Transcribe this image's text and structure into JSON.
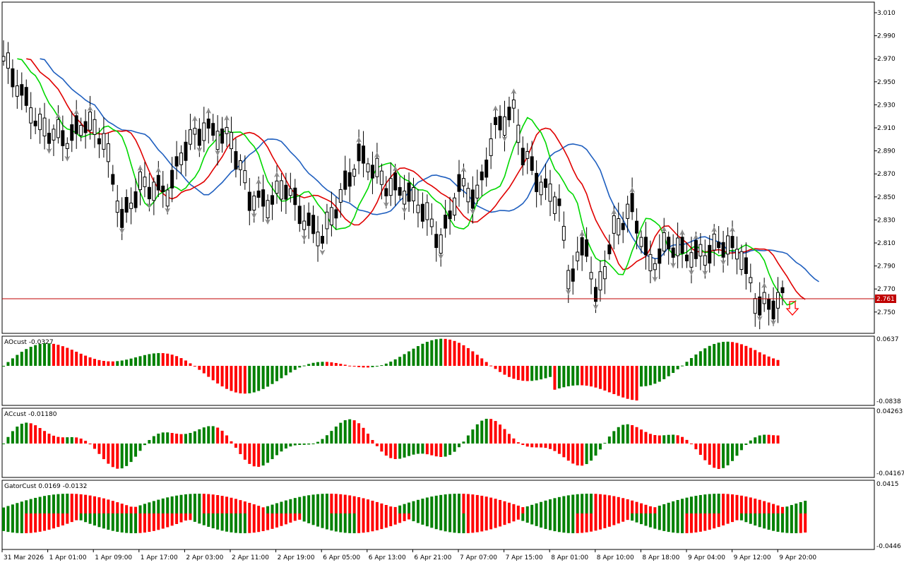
{
  "colors": {
    "background": "#ffffff",
    "frame": "#000000",
    "bull_candle": "#ffffff",
    "bear_candle": "#000000",
    "jaw": "#1f5fbf",
    "teeth": "#e00000",
    "lips": "#00d800",
    "histogram_up": "#008000",
    "histogram_down": "#ff0000",
    "fractal": "#8c8c8c",
    "price_line": "#c00000",
    "signal_arrow": "#ff0000"
  },
  "main_panel": {
    "price_ticks": [
      "3.010",
      "2.990",
      "2.970",
      "2.950",
      "2.930",
      "2.910",
      "2.890",
      "2.870",
      "2.850",
      "2.830",
      "2.810",
      "2.790",
      "2.770",
      "2.750"
    ],
    "current_price": "2.761",
    "signal_arrow_icon": "arrow-down-outline-icon"
  },
  "ao_panel": {
    "label": "AOcust -0.0327",
    "scale_top": "0.0637",
    "scale_bottom": "-0.0838"
  },
  "ac_panel": {
    "label": "ACcust -0.01180",
    "scale_top": "0.04263",
    "scale_bottom": "-0.04167"
  },
  "gator_panel": {
    "label": "GatorCust 0.0169 -0.0132",
    "scale_top": "0.0415",
    "scale_bottom": "-0.0446"
  },
  "time_axis": [
    "31 Mar 2026",
    "1 Apr 01:00",
    "1 Apr 09:00",
    "1 Apr 17:00",
    "2 Apr 03:00",
    "2 Apr 11:00",
    "2 Apr 19:00",
    "6 Apr 05:00",
    "6 Apr 13:00",
    "6 Apr 21:00",
    "7 Apr 07:00",
    "7 Apr 15:00",
    "8 Apr 01:00",
    "8 Apr 10:00",
    "8 Apr 18:00",
    "9 Apr 04:00",
    "9 Apr 12:00",
    "9 Apr 20:00"
  ]
}
